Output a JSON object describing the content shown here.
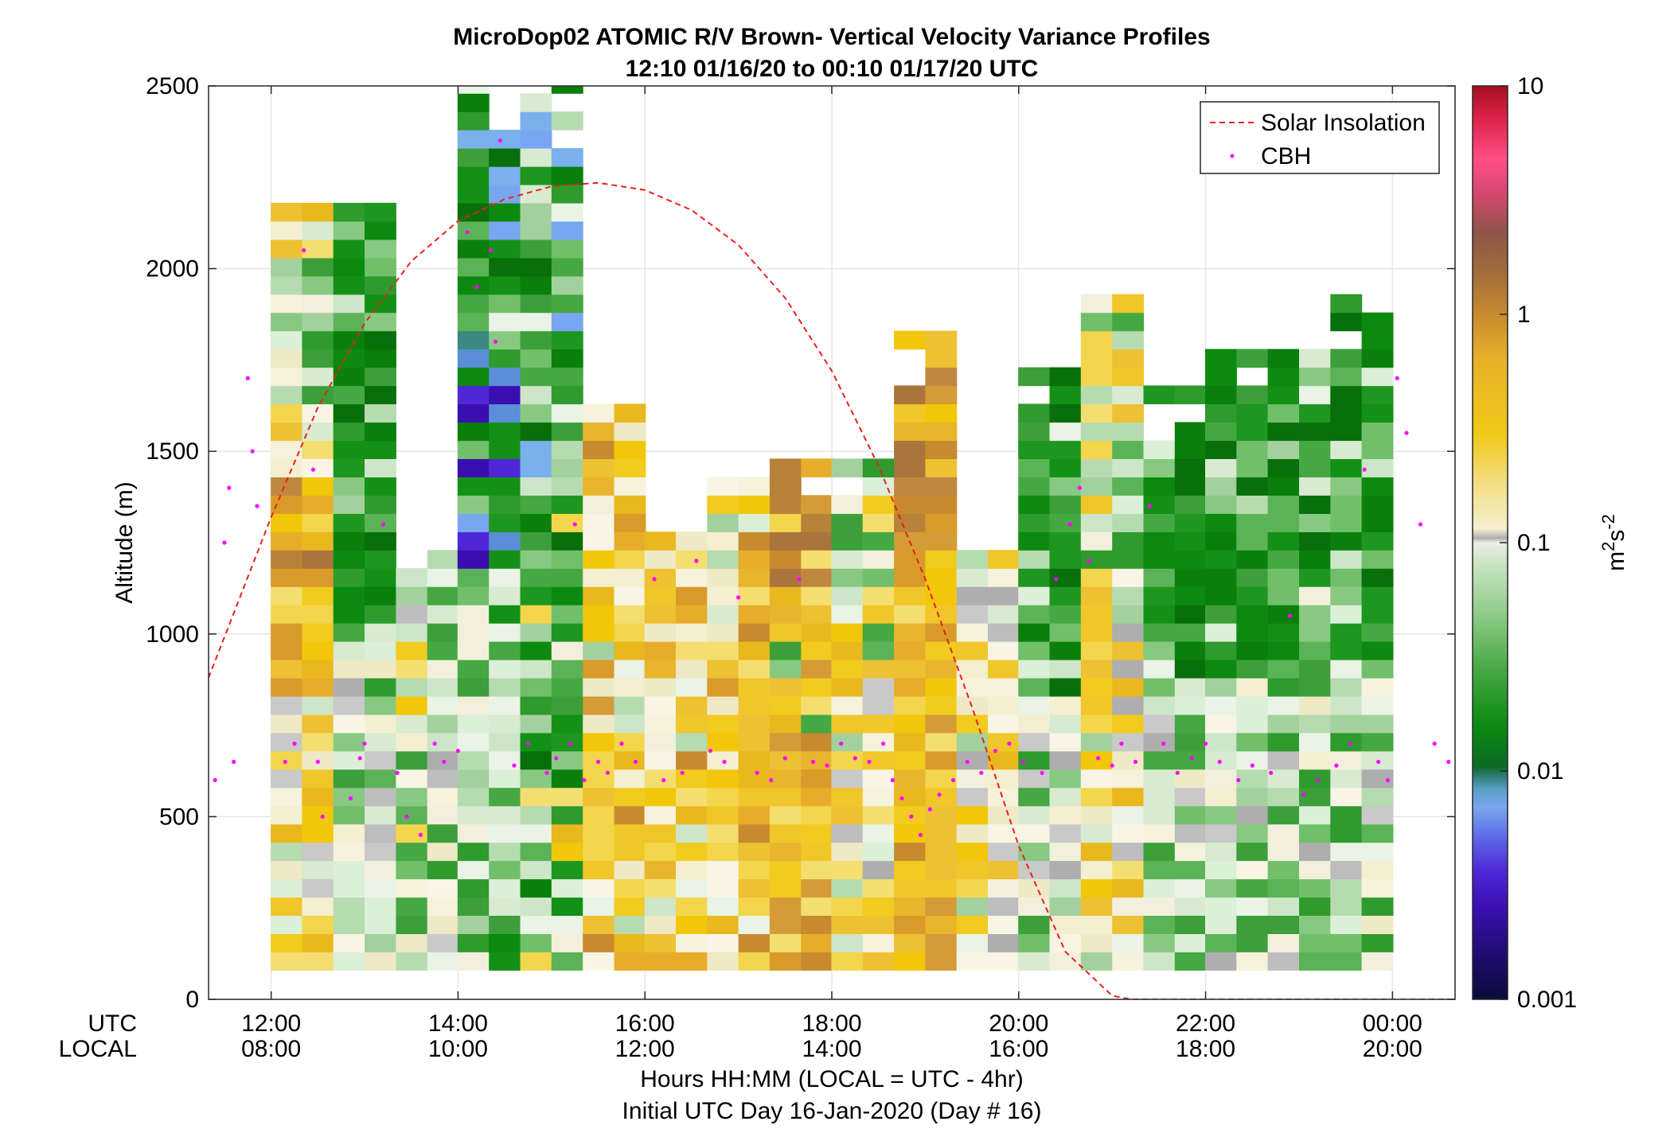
{
  "chart_data": {
    "type": "heatmap",
    "title": "MicroDop02 ATOMIC R/V Brown- Vertical Velocity Variance Profiles",
    "subtitle": "12:10 01/16/20 to 00:10 01/17/20  UTC",
    "ylabel": "Altitude (m)",
    "xlabel": "Hours HH:MM  (LOCAL = UTC - 4hr)",
    "footer": "Initial UTC Day 16-Jan-2020 (Day # 16)",
    "xrow_labels": [
      "UTC",
      "LOCAL"
    ],
    "colorbar_label_base": "m",
    "colorbar_label_sup1": "2",
    "colorbar_label_mid": "s",
    "colorbar_label_sup2": "-2",
    "colorbar_ticks": [
      "10",
      "1",
      "0.1",
      "0.01",
      "0.001"
    ],
    "colorbar_tick_values": [
      10,
      1,
      0.1,
      0.01,
      0.001
    ],
    "ylim": [
      0,
      2500
    ],
    "y_ticks": [
      "0",
      "500",
      "1000",
      "1500",
      "2000",
      "2500"
    ],
    "y_tick_values": [
      0,
      500,
      1000,
      1500,
      2000,
      2500
    ],
    "xlim_utc_hours": [
      11.33,
      24.67
    ],
    "x_tick_hours": [
      12,
      14,
      16,
      18,
      20,
      22,
      24
    ],
    "x_ticks_utc": [
      "12:00",
      "14:00",
      "16:00",
      "18:00",
      "20:00",
      "22:00",
      "00:00"
    ],
    "x_ticks_local": [
      "08:00",
      "10:00",
      "12:00",
      "14:00",
      "16:00",
      "18:00",
      "20:00"
    ],
    "grid": true,
    "legend_position": "top-right",
    "legend": [
      "Solar Insolation",
      "CBH"
    ],
    "series": [
      {
        "name": "Solar Insolation",
        "kind": "dashed-line",
        "color": "#e8201e",
        "x_hours": [
          11.33,
          12,
          12.5,
          13,
          13.5,
          14,
          14.5,
          15,
          15.5,
          16,
          16.5,
          17,
          17.5,
          18,
          18.5,
          19,
          19.5,
          20,
          20.5,
          21,
          21.2,
          22,
          23,
          24,
          24.67
        ],
        "y": [
          880,
          1320,
          1620,
          1850,
          2020,
          2130,
          2190,
          2225,
          2235,
          2215,
          2160,
          2065,
          1920,
          1720,
          1460,
          1150,
          800,
          420,
          130,
          10,
          0,
          0,
          0,
          0,
          0
        ]
      },
      {
        "name": "CBH",
        "kind": "points",
        "color": "#ff00ff",
        "note_approx": "sampled cloud base heights",
        "x_hours": [
          11.4,
          11.5,
          11.55,
          11.6,
          11.75,
          11.8,
          11.85,
          12.15,
          12.25,
          12.35,
          12.45,
          12.5,
          12.55,
          12.85,
          12.95,
          13.0,
          13.2,
          13.35,
          13.45,
          13.6,
          13.75,
          13.85,
          14.0,
          14.1,
          14.2,
          14.35,
          14.4,
          14.45,
          14.6,
          14.75,
          14.95,
          15.05,
          15.2,
          15.25,
          15.35,
          15.5,
          15.6,
          15.75,
          15.9,
          16.1,
          16.2,
          16.4,
          16.55,
          16.7,
          16.85,
          17.0,
          17.2,
          17.35,
          17.5,
          17.65,
          17.8,
          17.95,
          18.1,
          18.25,
          18.4,
          18.55,
          18.65,
          18.75,
          18.85,
          18.95,
          19.05,
          19.15,
          19.3,
          19.45,
          19.6,
          19.75,
          19.9,
          20.05,
          20.25,
          20.4,
          20.55,
          20.65,
          20.75,
          20.85,
          21.0,
          21.1,
          21.25,
          21.4,
          21.55,
          21.7,
          21.85,
          22.0,
          22.15,
          22.35,
          22.5,
          22.7,
          22.9,
          23.05,
          23.2,
          23.4,
          23.55,
          23.7,
          23.85,
          23.95,
          24.05,
          24.15,
          24.3,
          24.45,
          24.6
        ],
        "y": [
          600,
          1250,
          1400,
          650,
          1700,
          1500,
          1350,
          650,
          700,
          2050,
          1450,
          650,
          500,
          550,
          660,
          700,
          1300,
          620,
          500,
          450,
          700,
          650,
          680,
          2100,
          1950,
          2050,
          1800,
          2350,
          640,
          700,
          620,
          660,
          700,
          1300,
          600,
          650,
          620,
          700,
          650,
          1150,
          600,
          620,
          1200,
          680,
          650,
          1100,
          620,
          600,
          660,
          1150,
          650,
          640,
          700,
          660,
          650,
          700,
          600,
          550,
          500,
          450,
          520,
          560,
          600,
          650,
          620,
          680,
          700,
          650,
          620,
          1150,
          1300,
          1400,
          1200,
          660,
          640,
          700,
          650,
          1350,
          700,
          620,
          660,
          700,
          650,
          600,
          640,
          620,
          1050,
          560,
          600,
          640,
          700,
          1450,
          650,
          600,
          1700,
          1550,
          1300,
          700,
          650
        ]
      }
    ],
    "heatmap_columns_approx": [
      {
        "x_hour": 12.33,
        "top": 2200,
        "bottom": 80,
        "dominant": "yellow-orange"
      },
      {
        "x_hour": 13.0,
        "top": 2150,
        "bottom": 80,
        "dominant": "green"
      },
      {
        "x_hour": 13.67,
        "top": 1200,
        "bottom": 80,
        "dominant": "light-green/grey"
      },
      {
        "x_hour": 14.33,
        "top": 2500,
        "bottom": 80,
        "dominant": "green/blue"
      },
      {
        "x_hour": 15.0,
        "top": 2500,
        "bottom": 80,
        "dominant": "green/yellow"
      },
      {
        "x_hour": 15.67,
        "top": 1620,
        "bottom": 80,
        "dominant": "yellow"
      },
      {
        "x_hour": 16.33,
        "top": 1280,
        "bottom": 80,
        "dominant": "yellow"
      },
      {
        "x_hour": 17.0,
        "top": 1420,
        "bottom": 80,
        "dominant": "yellow"
      },
      {
        "x_hour": 17.67,
        "top": 1450,
        "bottom": 80,
        "dominant": "orange/yellow"
      },
      {
        "x_hour": 18.33,
        "top": 1440,
        "bottom": 80,
        "dominant": "yellow/green"
      },
      {
        "x_hour": 19.0,
        "top": 1790,
        "bottom": 80,
        "dominant": "orange/yellow"
      },
      {
        "x_hour": 19.67,
        "top": 1200,
        "bottom": 80,
        "dominant": "yellow/grey"
      },
      {
        "x_hour": 20.33,
        "top": 1700,
        "bottom": 80,
        "dominant": "green"
      },
      {
        "x_hour": 21.0,
        "top": 1890,
        "bottom": 80,
        "dominant": "yellow/green"
      },
      {
        "x_hour": 21.67,
        "top": 1650,
        "bottom": 80,
        "dominant": "green"
      },
      {
        "x_hour": 22.33,
        "top": 1780,
        "bottom": 80,
        "dominant": "green"
      },
      {
        "x_hour": 23.0,
        "top": 1780,
        "bottom": 80,
        "dominant": "green"
      },
      {
        "x_hour": 23.67,
        "top": 1920,
        "bottom": 80,
        "dominant": "green"
      }
    ],
    "colors": {
      "line": "#e8201e",
      "cbh": "#ff00ff",
      "grid": "#e6e6e6"
    }
  }
}
